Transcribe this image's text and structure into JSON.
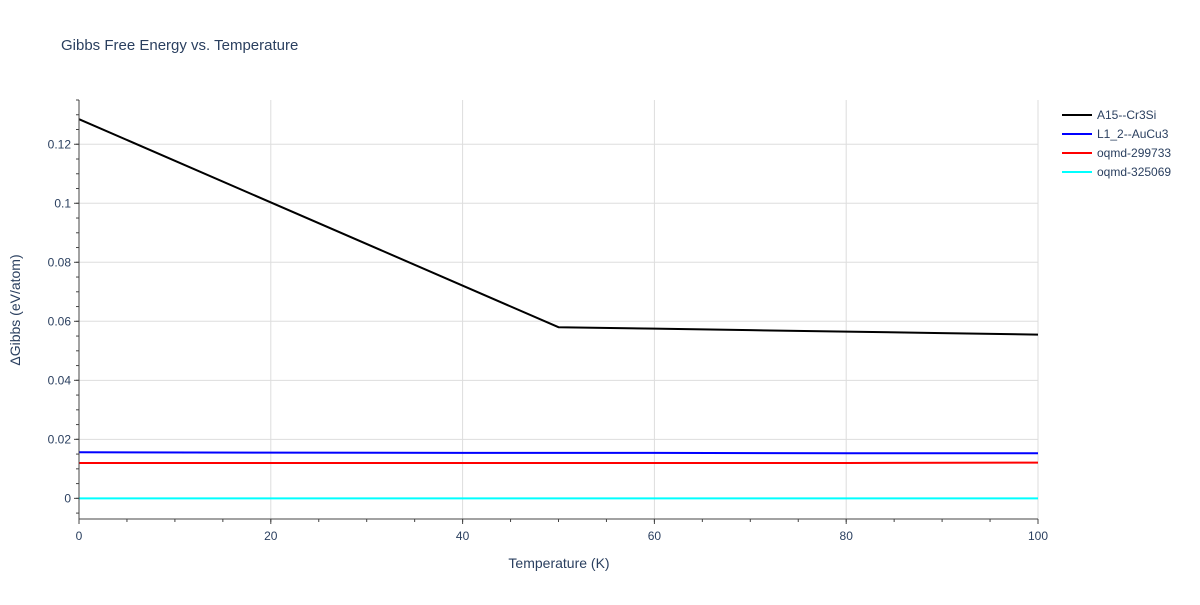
{
  "chart_data": {
    "type": "line",
    "title": "Gibbs Free Energy vs. Temperature",
    "xlabel": "Temperature (K)",
    "ylabel": "ΔGibbs (eV/atom)",
    "xlim": [
      0,
      100
    ],
    "ylim": [
      -0.007,
      0.135
    ],
    "xticks": [
      0,
      20,
      40,
      60,
      80,
      100
    ],
    "xtick_labels": [
      "0",
      "20",
      "40",
      "60",
      "80",
      "100"
    ],
    "yticks": [
      0,
      0.02,
      0.04,
      0.06,
      0.08,
      0.1,
      0.12
    ],
    "ytick_labels": [
      "0",
      "0.02",
      "0.04",
      "0.06",
      "0.08",
      "0.1",
      "0.12"
    ],
    "grid": true,
    "legend_position": "top-right",
    "series": [
      {
        "name": "A15--Cr3Si",
        "color": "#000000",
        "x": [
          0,
          50,
          60,
          70,
          80,
          90,
          100
        ],
        "y": [
          0.1285,
          0.058,
          0.0575,
          0.057,
          0.0565,
          0.056,
          0.0555
        ]
      },
      {
        "name": "L1_2--AuCu3",
        "color": "#0000ff",
        "x": [
          0,
          20,
          40,
          60,
          80,
          100
        ],
        "y": [
          0.0156,
          0.0155,
          0.0154,
          0.0154,
          0.0153,
          0.0153
        ]
      },
      {
        "name": "oqmd-299733",
        "color": "#ff0000",
        "x": [
          0,
          20,
          40,
          60,
          80,
          100
        ],
        "y": [
          0.012,
          0.012,
          0.012,
          0.012,
          0.012,
          0.0121
        ]
      },
      {
        "name": "oqmd-325069",
        "color": "#00ffff",
        "x": [
          0,
          20,
          40,
          60,
          80,
          100
        ],
        "y": [
          0,
          0,
          0,
          0,
          0,
          0
        ]
      }
    ]
  }
}
